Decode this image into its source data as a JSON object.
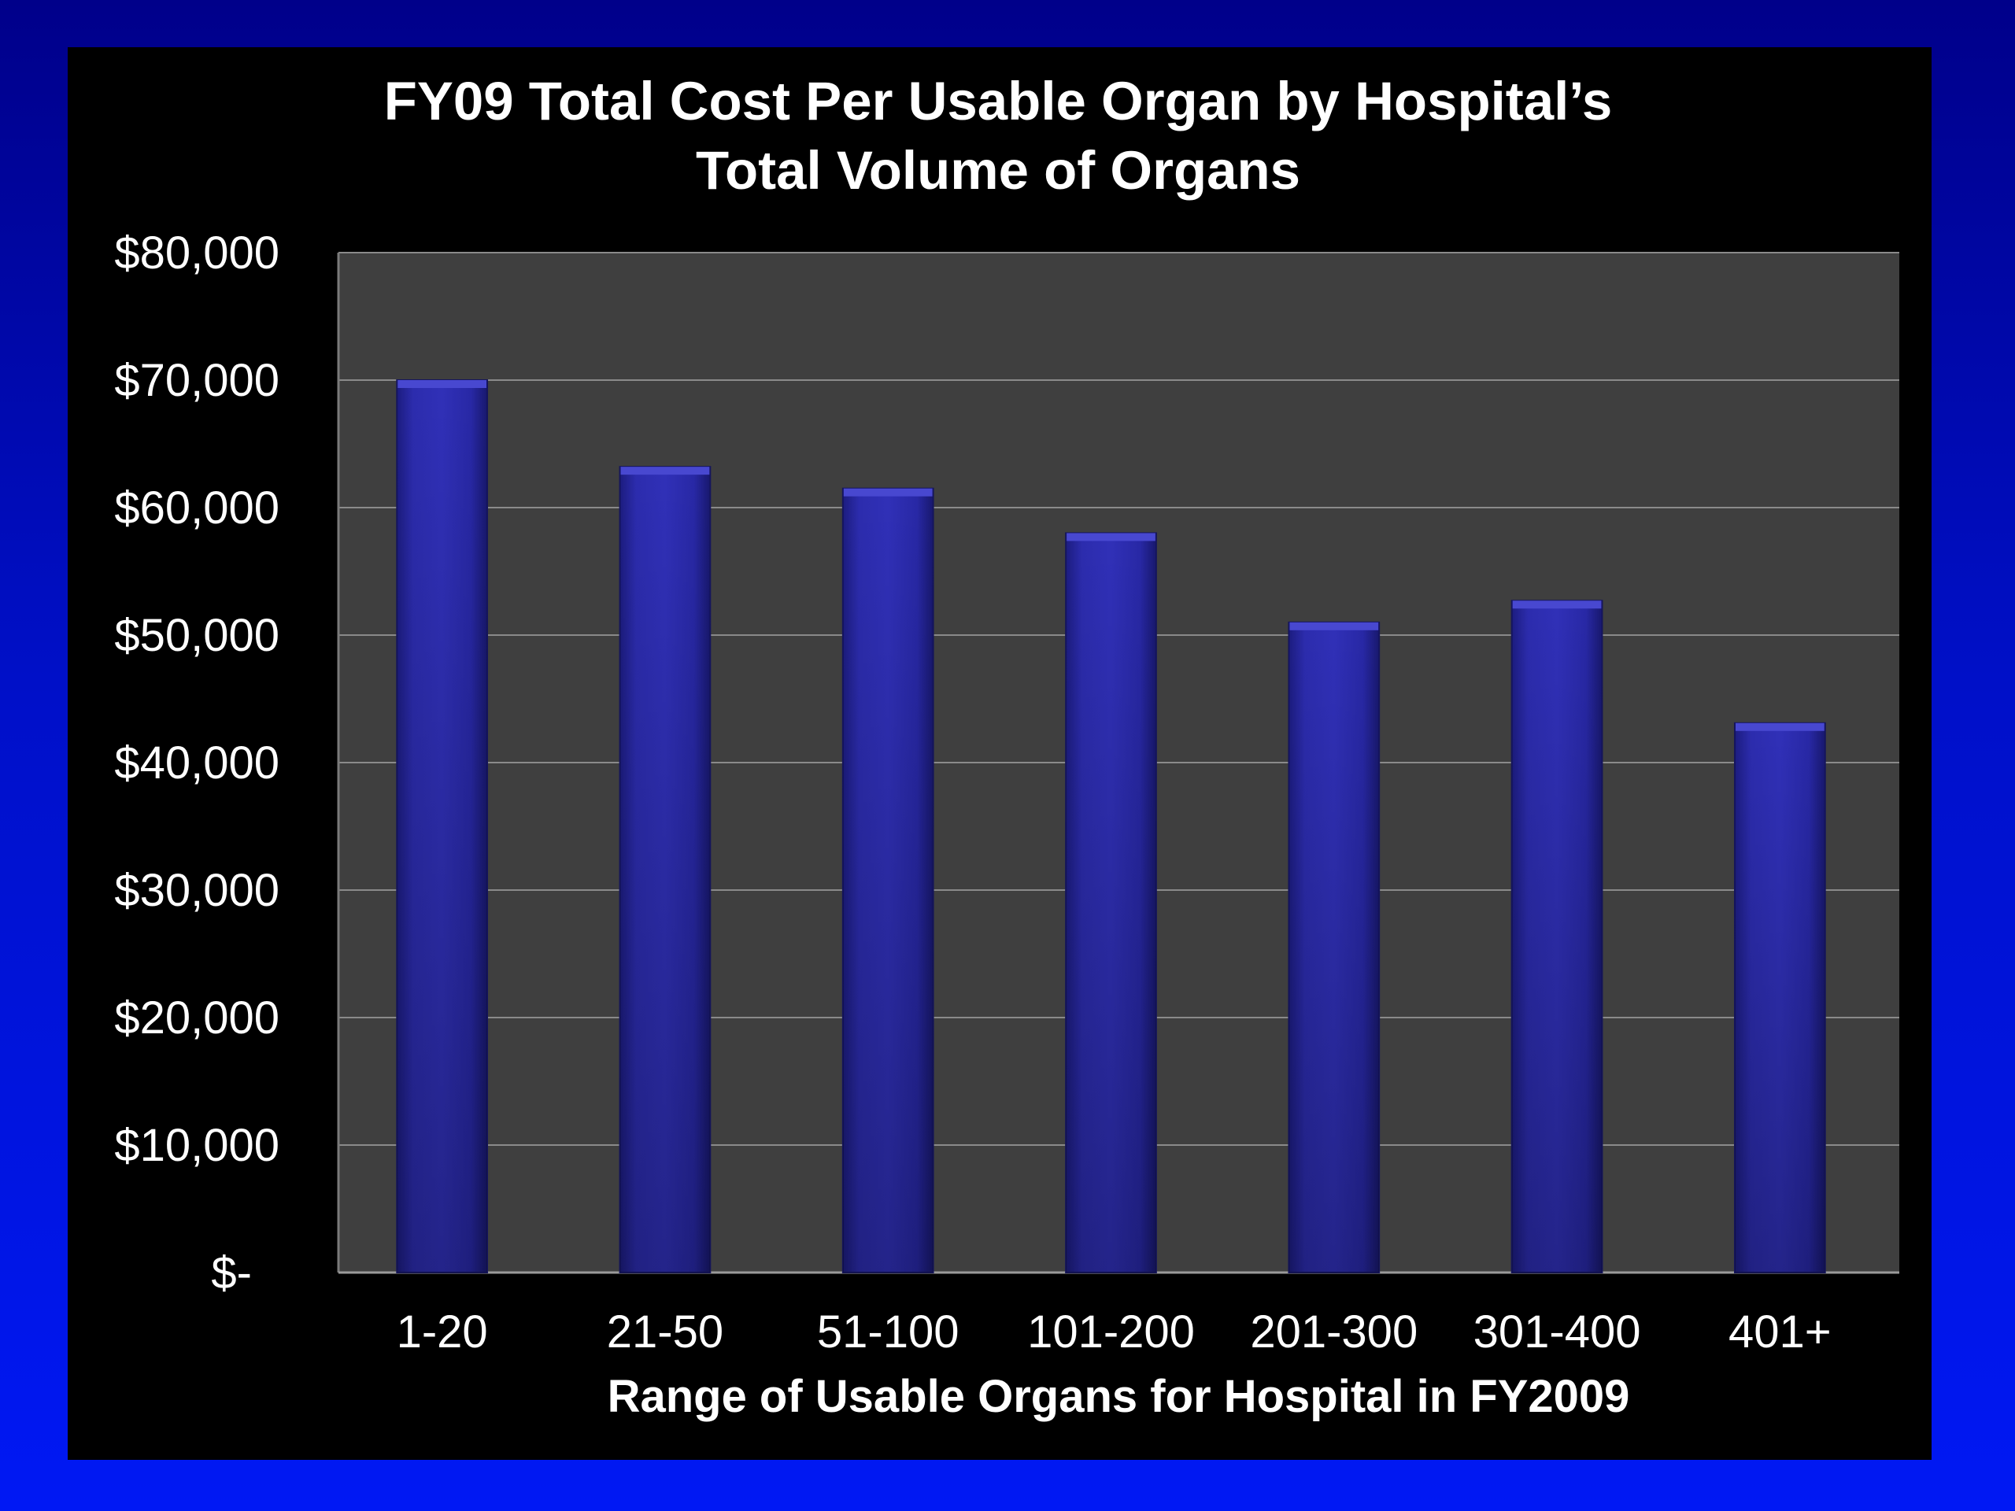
{
  "chart_data": {
    "type": "bar",
    "title_lines": [
      "FY09 Total Cost Per Usable Organ by Hospital’s",
      "Total Volume of Organs"
    ],
    "xlabel": "Range of Usable Organs for Hospital in FY2009",
    "ylabel": "",
    "categories": [
      "1-20",
      "21-50",
      "51-100",
      "101-200",
      "201-300",
      "301-400",
      "401+"
    ],
    "values": [
      70000,
      63200,
      61500,
      58000,
      51000,
      52700,
      43100
    ],
    "ylim": [
      0,
      80000
    ],
    "yticks": [
      0,
      10000,
      20000,
      30000,
      40000,
      50000,
      60000,
      70000,
      80000
    ],
    "ytick_labels": [
      "$-",
      "$10,000",
      "$20,000",
      "$30,000",
      "$40,000",
      "$50,000",
      "$60,000",
      "$70,000",
      "$80,000"
    ],
    "grid": true,
    "legend": "none",
    "colors": {
      "bar": "#2a2aa8",
      "bar_top": "#4848d0",
      "plot_background": "#3f3f3f",
      "gridline": "#8a8a8a",
      "panel_background": "#000000",
      "text": "#ffffff"
    }
  }
}
